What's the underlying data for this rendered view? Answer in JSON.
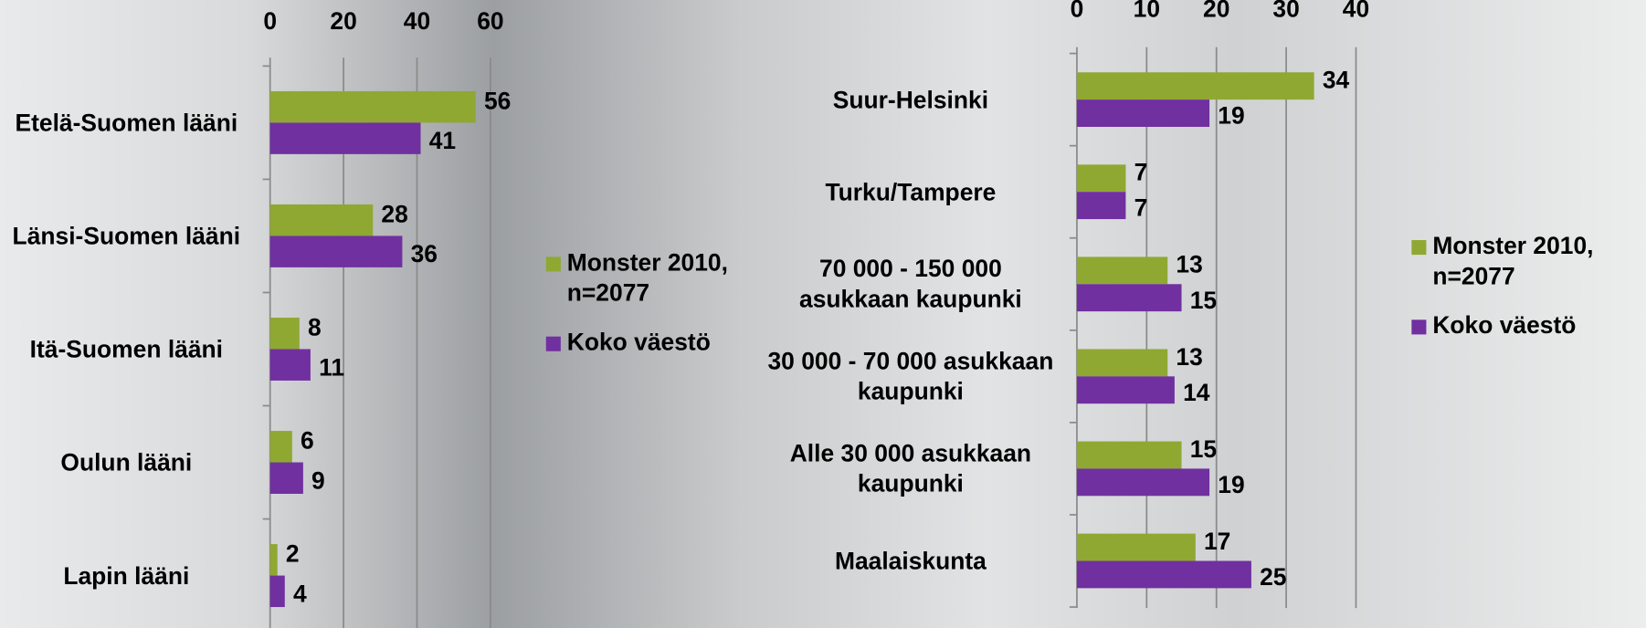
{
  "chart_data": [
    {
      "type": "bar",
      "orientation": "horizontal",
      "categories": [
        "Etelä-Suomen lääni",
        "Länsi-Suomen lääni",
        "Itä-Suomen lääni",
        "Oulun lääni",
        "Lapin lääni"
      ],
      "series": [
        {
          "name": "Monster 2010, n=2077",
          "color": "#8fa832",
          "values": [
            56,
            28,
            8,
            6,
            2
          ]
        },
        {
          "name": "Koko väestö",
          "color": "#7030a0",
          "values": [
            41,
            36,
            11,
            9,
            4
          ]
        }
      ],
      "xlim": [
        0,
        60
      ],
      "xticks": [
        0,
        20,
        40,
        60
      ],
      "grid": true,
      "legend": "right"
    },
    {
      "type": "bar",
      "orientation": "horizontal",
      "categories": [
        "Suur-Helsinki",
        "Turku/Tampere",
        "70 000 - 150 000 asukkaan kaupunki",
        "30 000 - 70 000 asukkaan kaupunki",
        "Alle 30 000 asukkaan kaupunki",
        "Maalaiskunta"
      ],
      "series": [
        {
          "name": "Monster 2010, n=2077",
          "color": "#8fa832",
          "values": [
            34,
            7,
            13,
            13,
            15,
            17
          ]
        },
        {
          "name": "Koko väestö",
          "color": "#7030a0",
          "values": [
            19,
            7,
            15,
            14,
            19,
            25
          ]
        }
      ],
      "xlim": [
        0,
        40
      ],
      "xticks": [
        0,
        10,
        20,
        30,
        40
      ],
      "grid": true,
      "legend": "right"
    }
  ]
}
